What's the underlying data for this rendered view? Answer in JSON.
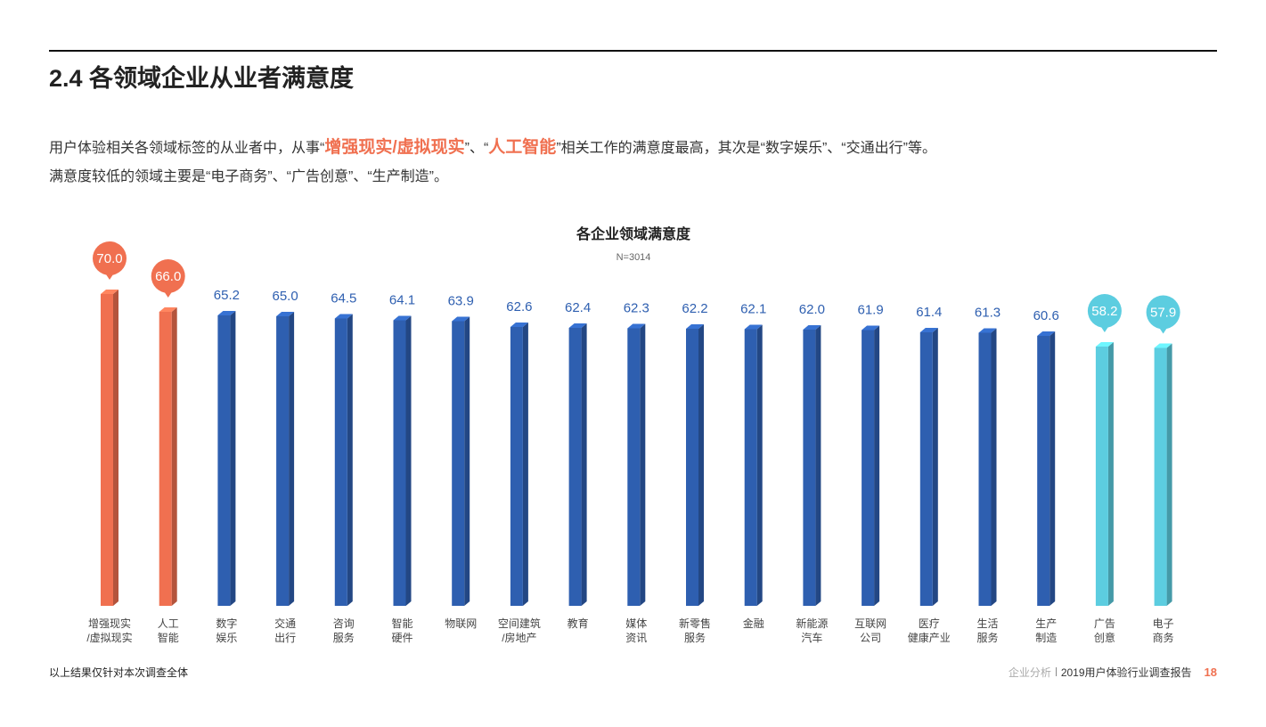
{
  "header": {
    "title": "2.4 各领域企业从业者满意度"
  },
  "intro": {
    "line1": [
      "用户体验相关各领域标签的从业者中，从事“",
      "增强现实/虚拟现实",
      "”、“",
      "人工智能",
      "”相关工作的满意度最高，其次是“数字娱乐”、“交通出行”等。"
    ],
    "line2": "满意度较低的领域主要是“电子商务”、“广告创意”、“生产制造”。"
  },
  "chart_data": {
    "type": "bar",
    "title": "各企业领域满意度",
    "subtitle": "N=3014",
    "categories": [
      [
        "增强现实",
        "/虚拟现实"
      ],
      [
        "人工",
        "智能"
      ],
      [
        "数字",
        "娱乐"
      ],
      [
        "交通",
        "出行"
      ],
      [
        "咨询",
        "服务"
      ],
      [
        "智能",
        "硬件"
      ],
      [
        "物联网"
      ],
      [
        "空间建筑",
        "/房地产"
      ],
      [
        "教育"
      ],
      [
        "媒体",
        "资讯"
      ],
      [
        "新零售",
        "服务"
      ],
      [
        "金融"
      ],
      [
        "新能源",
        "汽车"
      ],
      [
        "互联网",
        "公司"
      ],
      [
        "医疗",
        "健康产业"
      ],
      [
        "生活",
        "服务"
      ],
      [
        "生产",
        "制造"
      ],
      [
        "广告",
        "创意"
      ],
      [
        "电子",
        "商务"
      ]
    ],
    "values": [
      70.0,
      66.0,
      65.2,
      65.0,
      64.5,
      64.1,
      63.9,
      62.6,
      62.4,
      62.3,
      62.2,
      62.1,
      62.0,
      61.9,
      61.4,
      61.3,
      60.6,
      58.2,
      57.9
    ],
    "value_labels": [
      "70.0",
      "66.0",
      "65.2",
      "65.0",
      "64.5",
      "64.1",
      "63.9",
      "62.6",
      "62.4",
      "62.3",
      "62.2",
      "62.1",
      "62.0",
      "61.9",
      "61.4",
      "61.3",
      "60.6",
      "58.2",
      "57.9"
    ],
    "color": "#2e5fb0",
    "colors": [
      "#f07050",
      "#f07050",
      "#2e5fb0",
      "#2e5fb0",
      "#2e5fb0",
      "#2e5fb0",
      "#2e5fb0",
      "#2e5fb0",
      "#2e5fb0",
      "#2e5fb0",
      "#2e5fb0",
      "#2e5fb0",
      "#2e5fb0",
      "#2e5fb0",
      "#2e5fb0",
      "#2e5fb0",
      "#2e5fb0",
      "#5ccde0",
      "#5ccde0"
    ]
  },
  "footer": {
    "note": "以上结果仅针对本次调查全体",
    "section": "企业分析",
    "report": "2019用户体验行业调查报告",
    "page": "18"
  }
}
